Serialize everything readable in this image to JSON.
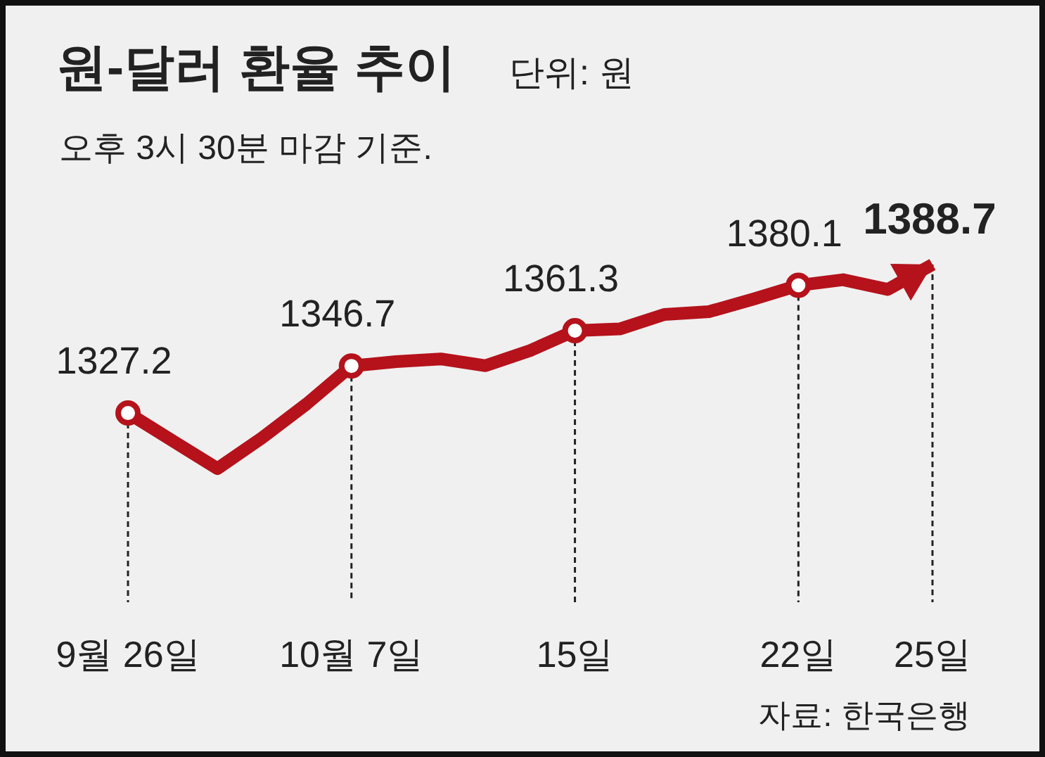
{
  "chart_data": {
    "type": "line",
    "title": "원-달러 환율 추이",
    "ylabel": "단위: 원",
    "subtitle": "오후 3시 30분 마감 기준.",
    "annotations": [
      "자료: 한국은행"
    ],
    "categories": [
      "9월 26일",
      null,
      null,
      null,
      null,
      "10월 7일",
      null,
      null,
      null,
      null,
      "15일",
      null,
      null,
      null,
      null,
      "22일",
      null,
      null,
      "25일"
    ],
    "color": "#b5121b",
    "values": [
      1327.2,
      1315.7,
      1304.2,
      1316.9,
      1331,
      1346.7,
      1348.5,
      1349.6,
      1346.8,
      1353.1,
      1361.3,
      1362,
      1368,
      1369.2,
      1374.4,
      1380.1,
      1382.4,
      1378.4,
      1388.7
    ],
    "value_labels": [
      "1327.2",
      null,
      null,
      null,
      null,
      "1346.7",
      null,
      null,
      null,
      null,
      "1361.3",
      null,
      null,
      null,
      null,
      "1380.1",
      null,
      null,
      "1388.7"
    ],
    "grid": "x"
  }
}
